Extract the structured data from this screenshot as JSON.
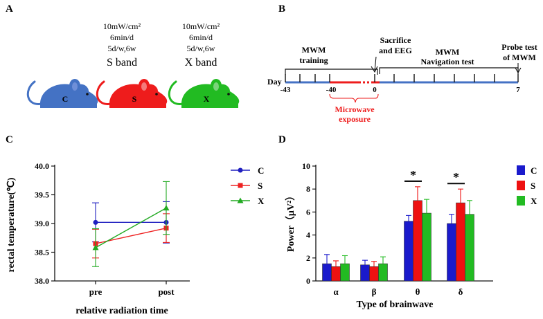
{
  "panels": {
    "a": {
      "letter": "A",
      "groups": [
        {
          "name": "C",
          "label": "",
          "color": "#4472c4",
          "params": []
        },
        {
          "name": "S",
          "label": "S band",
          "color": "#ee1c1c",
          "params": [
            "10mW/cm²",
            "6min/d",
            "5d/w,6w"
          ]
        },
        {
          "name": "X",
          "label": "X band",
          "color": "#22bb22",
          "params": [
            "10mW/cm²",
            "6min/d",
            "5d/w,6w"
          ]
        }
      ]
    },
    "b": {
      "letter": "B",
      "day_label": "Day",
      "mwm_training": [
        "MWM",
        "training"
      ],
      "sacrifice": [
        "Sacrifice",
        "and EEG"
      ],
      "navigation": [
        "MWM",
        "Navigation test"
      ],
      "probe": [
        "Probe test",
        "of MWM"
      ],
      "microwave": [
        "Microwave",
        "exposure"
      ],
      "ticks": {
        "start": "-43",
        "exposure_start": "-40",
        "zero": "0",
        "end": "7"
      },
      "colors": {
        "timeline": "#4472c4",
        "exposure": "#ee1c1c"
      }
    },
    "c": {
      "letter": "C"
    },
    "d": {
      "letter": "D"
    }
  },
  "chart_data": [
    {
      "type": "line",
      "panel": "C",
      "ylabel": "rectal temperature(℃)",
      "xlabel": "relative radiation time",
      "categories": [
        "pre",
        "post"
      ],
      "ylim": [
        38.0,
        40.0
      ],
      "yticks": [
        "38.0",
        "38.5",
        "39.0",
        "39.5",
        "40.0"
      ],
      "legend_position": "right",
      "series": [
        {
          "name": "C",
          "color": "#1f1fbf",
          "marker": "circle",
          "values": [
            39.02,
            39.02
          ],
          "errors": [
            0.34,
            0.36
          ]
        },
        {
          "name": "S",
          "color": "#ee2222",
          "marker": "square",
          "values": [
            38.65,
            38.92
          ],
          "errors": [
            0.25,
            0.25
          ]
        },
        {
          "name": "X",
          "color": "#22aa22",
          "marker": "triangle",
          "values": [
            38.58,
            39.27
          ],
          "errors": [
            0.33,
            0.46
          ]
        }
      ]
    },
    {
      "type": "bar",
      "panel": "D",
      "ylabel": "Power（μV²）",
      "xlabel": "Type of brainwave",
      "categories": [
        "α",
        "β",
        "θ",
        "δ"
      ],
      "ylim": [
        0,
        10
      ],
      "yticks": [
        "0",
        "2",
        "4",
        "6",
        "8",
        "10"
      ],
      "legend_position": "right",
      "series": [
        {
          "name": "C",
          "color": "#1a1acc",
          "values": [
            1.5,
            1.4,
            5.2,
            5.0
          ],
          "errors": [
            0.8,
            0.4,
            0.5,
            0.8
          ]
        },
        {
          "name": "S",
          "color": "#ee1111",
          "values": [
            1.25,
            1.25,
            7.0,
            6.8
          ],
          "errors": [
            0.5,
            0.45,
            1.2,
            1.2
          ]
        },
        {
          "name": "X",
          "color": "#22bb22",
          "values": [
            1.5,
            1.5,
            5.9,
            5.8
          ],
          "errors": [
            0.7,
            0.6,
            1.2,
            1.2
          ]
        }
      ],
      "significance": [
        {
          "category": "θ",
          "label": "*"
        },
        {
          "category": "δ",
          "label": "*"
        }
      ]
    }
  ]
}
